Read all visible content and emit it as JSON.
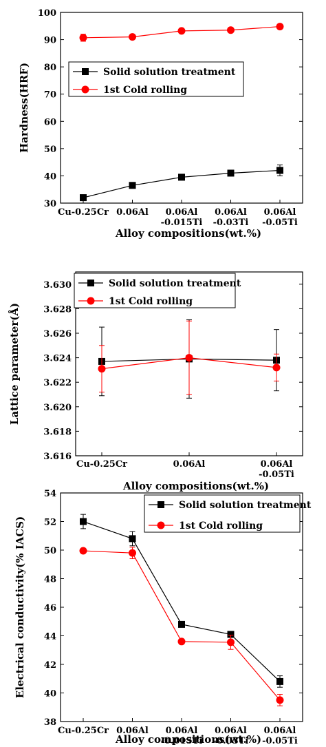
{
  "chart_data": [
    {
      "type": "line",
      "categories": [
        [
          "Cu-0.25Cr"
        ],
        [
          "0.06Al"
        ],
        [
          "0.06Al",
          "-0.015Ti"
        ],
        [
          "0.06Al",
          "-0.03Ti"
        ],
        [
          "0.06Al",
          "-0.05Ti"
        ]
      ],
      "xlabel": "Alloy compositions(wt.%)",
      "ylabel": "Hardness(HRF)",
      "ylim": [
        30,
        100
      ],
      "yticks": [
        30,
        40,
        50,
        60,
        70,
        80,
        90,
        100
      ],
      "ytick_decimals": 0,
      "grid": false,
      "legend_position": "center-right",
      "series": [
        {
          "name": "Solid solution treatment",
          "color": "#000000",
          "marker": "square",
          "values": [
            32.0,
            36.5,
            39.5,
            41.0,
            42.0
          ],
          "errors": [
            0.8,
            0.6,
            0.6,
            0.6,
            2.0
          ]
        },
        {
          "name": "1st Cold rolling",
          "color": "#ff0000",
          "marker": "circle",
          "values": [
            90.7,
            91.0,
            93.2,
            93.5,
            94.8
          ],
          "errors": [
            1.3,
            0.6,
            0.8,
            0.6,
            0.8
          ]
        }
      ]
    },
    {
      "type": "line",
      "categories": [
        [
          "Cu-0.25Cr"
        ],
        [
          "0.06Al"
        ],
        [
          "0.06Al",
          "-0.05Ti"
        ]
      ],
      "xlabel": "Alloy compositions(wt.%)",
      "ylabel": "Lattice parameter(Å)",
      "ylim": [
        3.616,
        3.631
      ],
      "yticks": [
        3.616,
        3.618,
        3.62,
        3.622,
        3.624,
        3.626,
        3.628,
        3.63
      ],
      "ytick_decimals": 3,
      "grid": false,
      "legend_position": "top-left",
      "series": [
        {
          "name": "Solid solution treatment",
          "color": "#000000",
          "marker": "square",
          "values": [
            3.6237,
            3.6239,
            3.6238
          ],
          "errors": [
            0.0028,
            0.0032,
            0.0025
          ]
        },
        {
          "name": "1st Cold rolling",
          "color": "#ff0000",
          "marker": "circle",
          "values": [
            3.6231,
            3.624,
            3.6232
          ],
          "errors": [
            0.0019,
            0.003,
            0.0011
          ]
        }
      ]
    },
    {
      "type": "line",
      "categories": [
        [
          "Cu-0.25Cr"
        ],
        [
          "0.06Al"
        ],
        [
          "0.06Al",
          "-0.015Ti"
        ],
        [
          "0.06Al",
          "-0.03Ti"
        ],
        [
          "0.06Al",
          "-0.05Ti"
        ]
      ],
      "xlabel": "Alloy compositions(wt.%)",
      "ylabel": "Electrical conductivity(% IACS)",
      "ylim": [
        38,
        54
      ],
      "yticks": [
        38,
        40,
        42,
        44,
        46,
        48,
        50,
        52,
        54
      ],
      "ytick_decimals": 0,
      "grid": false,
      "legend_position": "top-right",
      "series": [
        {
          "name": "Solid solution treatment",
          "color": "#000000",
          "marker": "square",
          "values": [
            52.0,
            50.8,
            44.8,
            44.1,
            40.8
          ],
          "errors": [
            0.5,
            0.5,
            0.1,
            0.2,
            0.4
          ]
        },
        {
          "name": "1st Cold rolling",
          "color": "#ff0000",
          "marker": "circle",
          "values": [
            49.95,
            49.8,
            43.6,
            43.55,
            39.5
          ],
          "errors": [
            0.1,
            0.4,
            0.1,
            0.5,
            0.4
          ]
        }
      ]
    }
  ]
}
